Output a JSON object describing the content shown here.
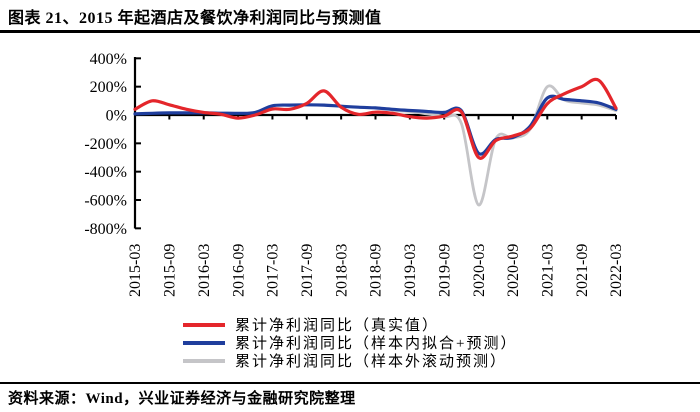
{
  "title": "图表 21、2015 年起酒店及餐饮净利润同比与预测值",
  "source": "资料来源：Wind，兴业证券经济与金融研究院整理",
  "chart_data": {
    "type": "line",
    "title": "图表 21、2015 年起酒店及餐饮净利润同比与预测值",
    "xlabel": "",
    "ylabel": "",
    "ylim": [
      -800,
      400
    ],
    "grid": false,
    "legend_position": "bottom",
    "y_ticks": [
      400,
      200,
      0,
      -200,
      -400,
      -600,
      -800
    ],
    "y_tick_suffix": "%",
    "x_tick_step": 2,
    "x": [
      "2015-03",
      "2015-06",
      "2015-09",
      "2015-12",
      "2016-03",
      "2016-06",
      "2016-09",
      "2016-12",
      "2017-03",
      "2017-06",
      "2017-09",
      "2017-12",
      "2018-03",
      "2018-06",
      "2018-09",
      "2018-12",
      "2019-03",
      "2019-06",
      "2019-09",
      "2019-12",
      "2020-03",
      "2020-06",
      "2020-09",
      "2020-12",
      "2021-03",
      "2021-06",
      "2021-09",
      "2021-12",
      "2022-03"
    ],
    "x_tick_labels": [
      "2015-03",
      "2015-09",
      "2016-03",
      "2016-09",
      "2017-03",
      "2017-09",
      "2018-03",
      "2018-09",
      "2019-03",
      "2019-09",
      "2020-03",
      "2020-09",
      "2021-03",
      "2021-09",
      "2022-03"
    ],
    "series": [
      {
        "name": "累计净利润同比（真实值）",
        "color": "#e4262b",
        "width": 3.2,
        "values": [
          40,
          100,
          72,
          40,
          18,
          5,
          -22,
          0,
          42,
          40,
          82,
          170,
          55,
          5,
          20,
          12,
          -12,
          -22,
          -8,
          22,
          -300,
          -180,
          -148,
          -95,
          80,
          150,
          200,
          245,
          48
        ]
      },
      {
        "name": "累计净利润同比（样本内拟合+预测）",
        "color": "#1f3e9d",
        "width": 3.2,
        "values": [
          8,
          12,
          15,
          15,
          15,
          13,
          12,
          18,
          65,
          70,
          72,
          70,
          62,
          55,
          50,
          40,
          32,
          25,
          18,
          30,
          -270,
          -172,
          -158,
          -80,
          120,
          110,
          100,
          85,
          40
        ]
      },
      {
        "name": "累计净利润同比（样本外滚动预测）",
        "color": "#c5c5c8",
        "width": 2.8,
        "values": [
          null,
          null,
          null,
          null,
          null,
          null,
          null,
          null,
          null,
          null,
          null,
          null,
          null,
          null,
          null,
          30,
          25,
          8,
          -12,
          -60,
          -635,
          -168,
          -162,
          -100,
          200,
          105,
          85,
          70,
          30
        ]
      }
    ]
  }
}
